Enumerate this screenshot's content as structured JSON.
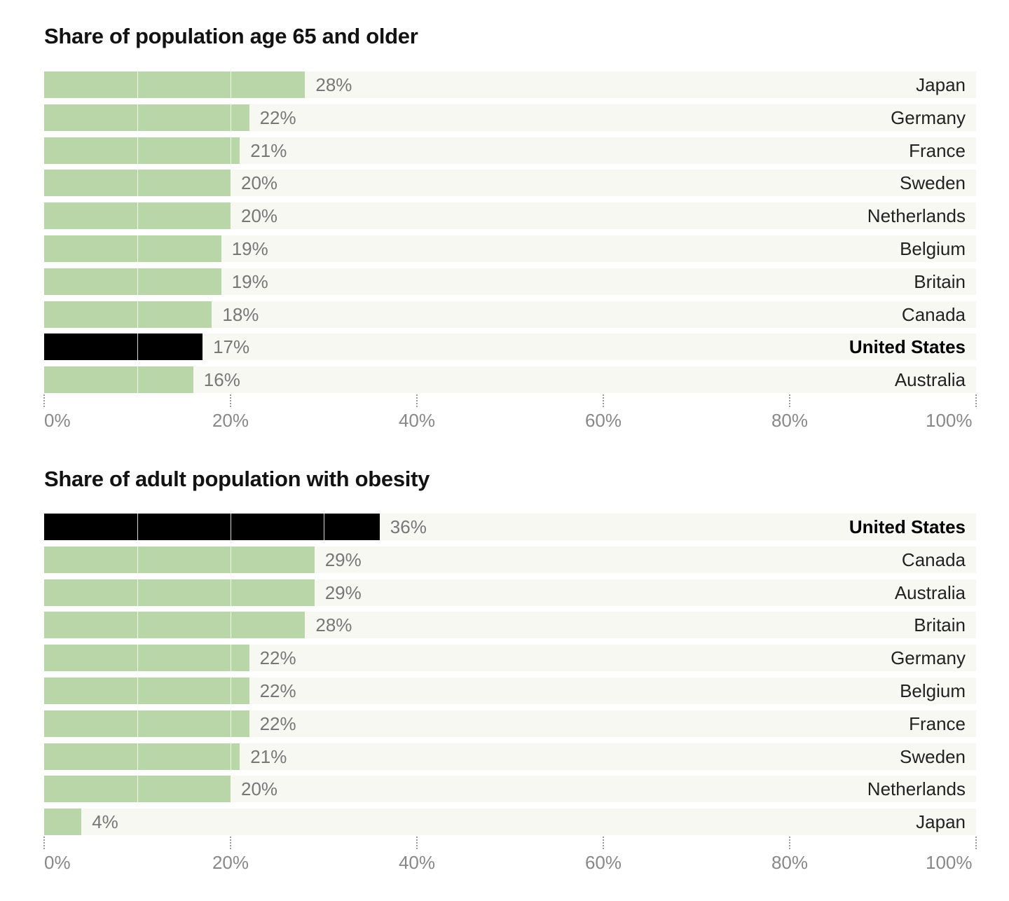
{
  "chart_data": [
    {
      "type": "bar",
      "orientation": "horizontal",
      "title": "Share of population age 65 and older",
      "categories": [
        "Japan",
        "Germany",
        "France",
        "Sweden",
        "Netherlands",
        "Belgium",
        "Britain",
        "Canada",
        "United States",
        "Australia"
      ],
      "values": [
        28,
        22,
        21,
        20,
        20,
        19,
        19,
        18,
        17,
        16
      ],
      "value_labels": [
        "28%",
        "22%",
        "21%",
        "20%",
        "20%",
        "19%",
        "19%",
        "18%",
        "17%",
        "16%"
      ],
      "highlight": "United States",
      "xlim": [
        0,
        100
      ],
      "xticks": [
        0,
        20,
        40,
        60,
        80,
        100
      ],
      "xtick_labels": [
        "0%",
        "20%",
        "40%",
        "60%",
        "80%",
        "100%"
      ]
    },
    {
      "type": "bar",
      "orientation": "horizontal",
      "title": "Share of adult population with obesity",
      "categories": [
        "United States",
        "Canada",
        "Australia",
        "Britain",
        "Germany",
        "Belgium",
        "France",
        "Sweden",
        "Netherlands",
        "Japan"
      ],
      "values": [
        36,
        29,
        29,
        28,
        22,
        22,
        22,
        21,
        20,
        4
      ],
      "value_labels": [
        "36%",
        "29%",
        "29%",
        "28%",
        "22%",
        "22%",
        "22%",
        "21%",
        "20%",
        "4%"
      ],
      "highlight": "United States",
      "xlim": [
        0,
        100
      ],
      "xticks": [
        0,
        20,
        40,
        60,
        80,
        100
      ],
      "xtick_labels": [
        "0%",
        "20%",
        "40%",
        "60%",
        "80%",
        "100%"
      ]
    }
  ],
  "colors": {
    "bar": "#b8d6a8",
    "highlight": "#000000",
    "row_bg": "#f8f8f3"
  }
}
